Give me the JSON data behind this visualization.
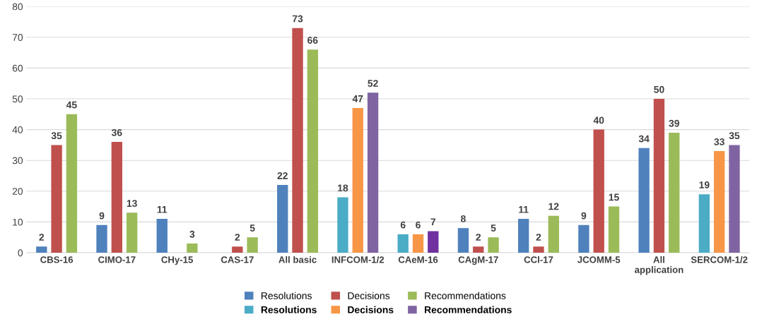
{
  "chart_data": {
    "type": "bar",
    "categories": [
      "CBS-16",
      "CIMO-17",
      "CHy-15",
      "CAS-17",
      "All basic",
      "INFCOM-1/2",
      "CAeM-16",
      "CAgM-17",
      "CCl-17",
      "JCOMM-5",
      "All application",
      "SERCOM-1/2"
    ],
    "series": [
      {
        "name": "Resolutions",
        "color": "#4f81bd",
        "values": [
          2,
          9,
          11,
          null,
          22,
          null,
          null,
          8,
          11,
          9,
          34,
          null
        ]
      },
      {
        "name": "Decisions",
        "color": "#c0504d",
        "values": [
          35,
          36,
          null,
          2,
          73,
          null,
          null,
          2,
          2,
          40,
          50,
          null
        ]
      },
      {
        "name": "Recommendations",
        "color": "#9bbb59",
        "values": [
          45,
          13,
          3,
          5,
          66,
          null,
          null,
          5,
          12,
          15,
          39,
          null
        ]
      },
      {
        "name": "Resolutions",
        "color": "#4bacc6",
        "values": [
          null,
          null,
          null,
          null,
          null,
          18,
          6,
          null,
          null,
          null,
          null,
          19
        ]
      },
      {
        "name": "Decisions",
        "color": "#f79646",
        "values": [
          null,
          null,
          null,
          null,
          null,
          47,
          6,
          null,
          null,
          null,
          null,
          33
        ]
      },
      {
        "name": "Recommendations",
        "color": "#8064a2",
        "colors": [
          "#8064a2",
          "#8064a2",
          "#8064a2",
          "#8064a2",
          "#8064a2",
          "#8064a2",
          "#7030a0",
          "#8064a2",
          "#8064a2",
          "#8064a2",
          "#8064a2",
          "#8064a2"
        ],
        "values": [
          null,
          null,
          null,
          null,
          null,
          52,
          7,
          null,
          null,
          null,
          null,
          35
        ]
      }
    ],
    "ylim": [
      0,
      80
    ],
    "yticks": [
      0,
      10,
      20,
      30,
      40,
      50,
      60,
      70,
      80
    ],
    "grid": "y",
    "legend": "bottom",
    "data_labels": true
  }
}
